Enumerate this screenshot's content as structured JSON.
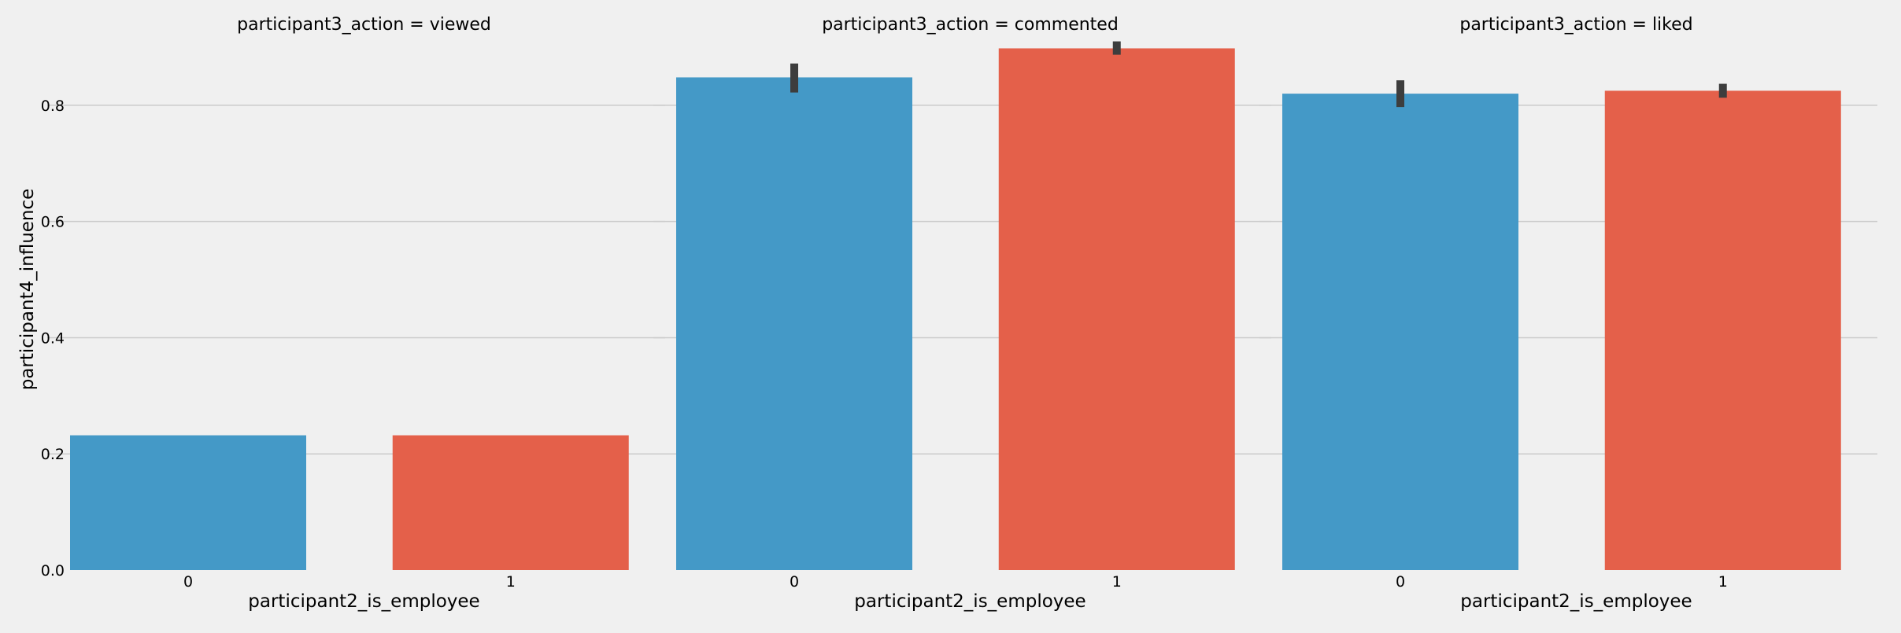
{
  "chart_data": {
    "type": "bar",
    "colors": {
      "0": "#4499c7",
      "1": "#e4604a",
      "background": "#f0f0f0",
      "grid": "#cbcbcb",
      "errorbar": "#3d3d3d"
    },
    "ylabel": "participant4_influence",
    "xlabel": "participant2_is_employee",
    "ylim": [
      0,
      0.9
    ],
    "yticks": [
      "0.0",
      "0.2",
      "0.4",
      "0.6",
      "0.8"
    ],
    "ytick_values": [
      0.0,
      0.2,
      0.4,
      0.6,
      0.8
    ],
    "grid": true,
    "categories": [
      "0",
      "1"
    ],
    "facets": [
      {
        "title": "participant3_action = viewed",
        "values": [
          0.232,
          0.232
        ],
        "error": [
          [
            0.232,
            0.232
          ],
          [
            0.232,
            0.232
          ]
        ]
      },
      {
        "title": "participant3_action = commented",
        "values": [
          0.848,
          0.898
        ],
        "error": [
          [
            0.822,
            0.872
          ],
          [
            0.887,
            0.91
          ]
        ]
      },
      {
        "title": "participant3_action = liked",
        "values": [
          0.82,
          0.825
        ],
        "error": [
          [
            0.797,
            0.843
          ],
          [
            0.813,
            0.837
          ]
        ]
      }
    ]
  }
}
